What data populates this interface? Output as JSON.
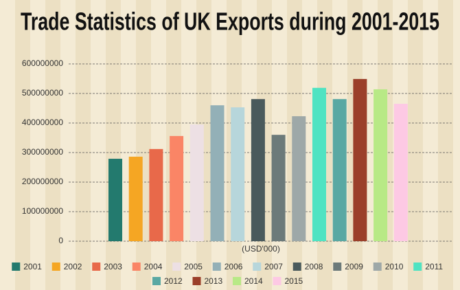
{
  "chart_data": {
    "type": "bar",
    "title": "Trade Statistics of UK Exports during 2001-2015",
    "x_label": "(USD'000)",
    "series": [
      {
        "name": "2001",
        "color": "#237a6e",
        "values": [
          279000000
        ]
      },
      {
        "name": "2002",
        "color": "#f5a623",
        "values": [
          286000000
        ]
      },
      {
        "name": "2003",
        "color": "#e8694a",
        "values": [
          312000000
        ]
      },
      {
        "name": "2004",
        "color": "#fa8566",
        "values": [
          356000000
        ]
      },
      {
        "name": "2005",
        "color": "#ede0e4",
        "values": [
          395000000
        ]
      },
      {
        "name": "2006",
        "color": "#93b0b7",
        "values": [
          460000000
        ]
      },
      {
        "name": "2007",
        "color": "#b7d6db",
        "values": [
          453000000
        ]
      },
      {
        "name": "2008",
        "color": "#4a5a5c",
        "values": [
          481000000
        ]
      },
      {
        "name": "2009",
        "color": "#6c7a7a",
        "values": [
          360000000
        ]
      },
      {
        "name": "2010",
        "color": "#9ea8a8",
        "values": [
          423000000
        ]
      },
      {
        "name": "2011",
        "color": "#50e3c2",
        "values": [
          519000000
        ]
      },
      {
        "name": "2012",
        "color": "#5aa8a3",
        "values": [
          481000000
        ]
      },
      {
        "name": "2013",
        "color": "#9b3f2a",
        "values": [
          549000000
        ]
      },
      {
        "name": "2014",
        "color": "#b8e986",
        "values": [
          514000000
        ]
      },
      {
        "name": "2015",
        "color": "#fdc9e4",
        "values": [
          465000000
        ]
      }
    ],
    "ylim": [
      0,
      600000000
    ],
    "yticks": [
      0,
      100000000,
      200000000,
      300000000,
      400000000,
      500000000,
      600000000
    ],
    "grid": true,
    "legend": "bottom"
  }
}
